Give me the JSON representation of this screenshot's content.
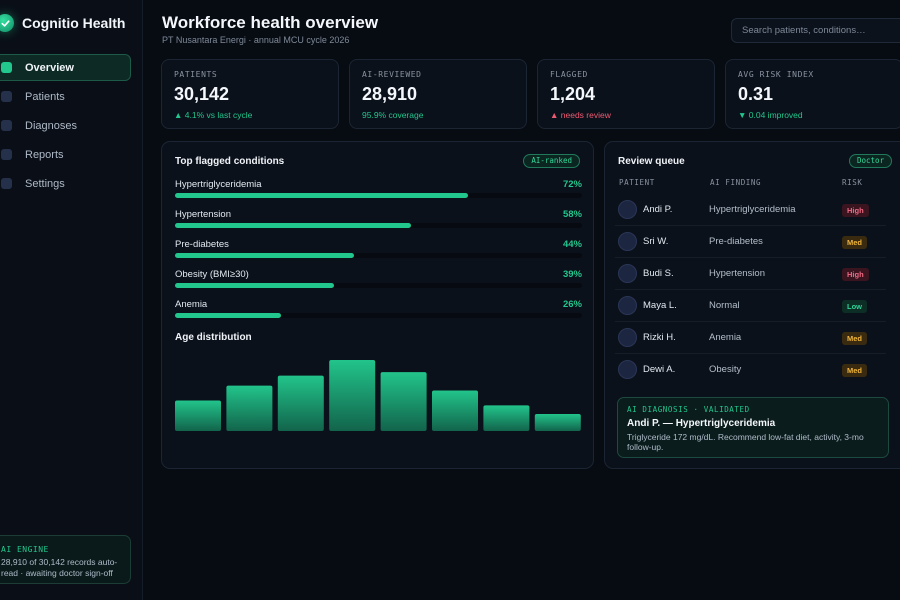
{
  "app": {
    "name": "Cognitio Health",
    "accent_color": "#21c78d"
  },
  "sidebar": {
    "items": [
      {
        "label": "Overview",
        "active": true
      },
      {
        "label": "Patients",
        "active": false
      },
      {
        "label": "Diagnoses",
        "active": false
      },
      {
        "label": "Reports",
        "active": false
      },
      {
        "label": "Settings",
        "active": false
      }
    ],
    "engine": {
      "title": "AI ENGINE",
      "text": "28,910 of 30,142 records auto-read · awaiting doctor sign-off"
    }
  },
  "header": {
    "title": "Workforce health overview",
    "subtitle": "PT Nusantara Energi · annual MCU cycle 2026",
    "search_placeholder": "Search patients, conditions…"
  },
  "kpis": [
    {
      "label": "PATIENTS",
      "value": "30,142",
      "delta": "▲ 4.1% vs last cycle",
      "delta_color": "#21c78d"
    },
    {
      "label": "AI-REVIEWED",
      "value": "28,910",
      "delta": "95.9% coverage",
      "delta_color": "#21c78d"
    },
    {
      "label": "FLAGGED",
      "value": "1,204",
      "delta": "▲ needs review",
      "delta_color": "#ef5a73"
    },
    {
      "label": "AVG RISK INDEX",
      "value": "0.31",
      "delta": "▼ 0.04 improved",
      "delta_color": "#21c78d"
    }
  ],
  "conditions": {
    "title": "Top flagged conditions",
    "chip": "AI-ranked",
    "items": [
      {
        "name": "Hypertriglyceridemia",
        "pct_label": "72%",
        "pct": 72
      },
      {
        "name": "Hypertension",
        "pct_label": "58%",
        "pct": 58
      },
      {
        "name": "Pre-diabetes",
        "pct_label": "44%",
        "pct": 44
      },
      {
        "name": "Obesity (BMI≥30)",
        "pct_label": "39%",
        "pct": 39
      },
      {
        "name": "Anemia",
        "pct_label": "26%",
        "pct": 26
      }
    ]
  },
  "age_distribution": {
    "title": "Age distribution"
  },
  "chart_data": {
    "type": "bar",
    "title": "Age distribution",
    "values": [
      43,
      64,
      78,
      100,
      83,
      57,
      36,
      24
    ],
    "ylim": [
      0,
      100
    ]
  },
  "queue": {
    "title": "Review queue",
    "chip": "Doctor",
    "columns": [
      "PATIENT",
      "AI FINDING",
      "RISK"
    ],
    "rows": [
      {
        "name": "Andi P.",
        "finding": "Hypertriglyceridemia",
        "risk": "High",
        "risk_level": "high"
      },
      {
        "name": "Sri W.",
        "finding": "Pre-diabetes",
        "risk": "Med",
        "risk_level": "med"
      },
      {
        "name": "Budi S.",
        "finding": "Hypertension",
        "risk": "High",
        "risk_level": "high"
      },
      {
        "name": "Maya L.",
        "finding": "Normal",
        "risk": "Low",
        "risk_level": "low"
      },
      {
        "name": "Rizki H.",
        "finding": "Anemia",
        "risk": "Med",
        "risk_level": "med"
      },
      {
        "name": "Dewi A.",
        "finding": "Obesity",
        "risk": "Med",
        "risk_level": "med"
      }
    ],
    "diagnosis": {
      "head": "AI DIAGNOSIS · VALIDATED",
      "title": "Andi P. — Hypertriglyceridemia",
      "text": "Triglyceride 172 mg/dL. Recommend low-fat diet, activity, 3-mo follow-up."
    }
  }
}
